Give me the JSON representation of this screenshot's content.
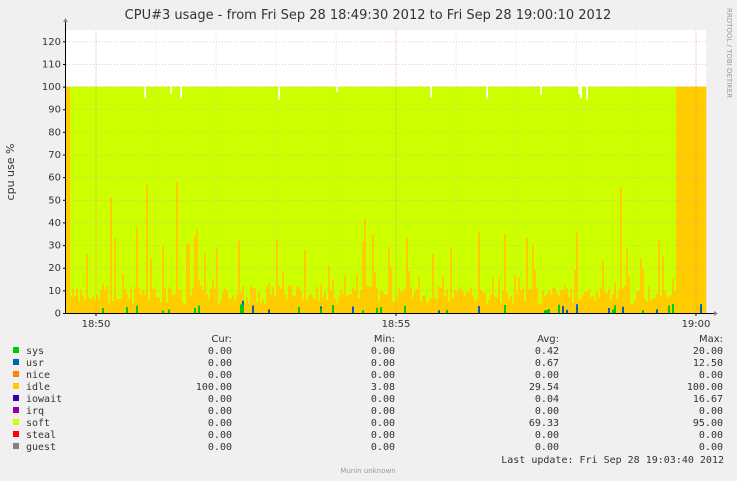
{
  "chart_data": {
    "type": "area",
    "title": "CPU#3 usage - from Fri Sep 28 18:49:30 2012 to Fri Sep 28 19:00:10 2012",
    "ylabel": "cpu use %",
    "xlabel": "",
    "watermark": "RRDTOOL / TOBI OETIKER",
    "ylim": [
      0,
      125
    ],
    "y_ticks": [
      0,
      10,
      20,
      30,
      40,
      50,
      60,
      70,
      80,
      90,
      100,
      110,
      120
    ],
    "x_ticks": [
      {
        "label": "18:50",
        "minute": 0.5
      },
      {
        "label": "18:55",
        "minute": 5.5
      },
      {
        "label": "19:00",
        "minute": 10.5
      }
    ],
    "x_range_minutes": [
      0,
      10.667
    ],
    "grid": true,
    "stacked": true,
    "legend_columns": [
      "Cur:",
      "Min:",
      "Avg:",
      "Max:"
    ],
    "series": [
      {
        "name": "sys",
        "color": "#00cc00",
        "cur": "0.00",
        "min": "0.00",
        "avg": "0.42",
        "max": "20.00"
      },
      {
        "name": "usr",
        "color": "#0066b3",
        "cur": "0.00",
        "min": "0.00",
        "avg": "0.67",
        "max": "12.50"
      },
      {
        "name": "nice",
        "color": "#ff8000",
        "cur": "0.00",
        "min": "0.00",
        "avg": "0.00",
        "max": "0.00"
      },
      {
        "name": "idle",
        "color": "#ffcc00",
        "cur": "100.00",
        "min": "3.08",
        "avg": "29.54",
        "max": "100.00"
      },
      {
        "name": "iowait",
        "color": "#330099",
        "cur": "0.00",
        "min": "0.00",
        "avg": "0.04",
        "max": "16.67"
      },
      {
        "name": "irq",
        "color": "#990099",
        "cur": "0.00",
        "min": "0.00",
        "avg": "0.00",
        "max": "0.00"
      },
      {
        "name": "soft",
        "color": "#ccff00",
        "cur": "0.00",
        "min": "0.00",
        "avg": "69.33",
        "max": "95.00"
      },
      {
        "name": "steal",
        "color": "#ff0000",
        "cur": "0.00",
        "min": "0.00",
        "avg": "0.00",
        "max": "0.00"
      },
      {
        "name": "guest",
        "color": "#808080",
        "cur": "0.00",
        "min": "0.00",
        "avg": "0.00",
        "max": "0.00"
      }
    ],
    "last_update": "Last update:  Fri Sep 28 19:03:40 2012",
    "footer": "Munin unknown"
  }
}
